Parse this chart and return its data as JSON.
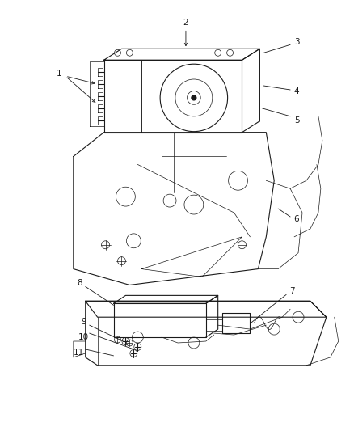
{
  "background_color": "#ffffff",
  "line_color": "#1a1a1a",
  "label_color": "#1a1a1a",
  "fig_width": 4.39,
  "fig_height": 5.33,
  "dpi": 100
}
